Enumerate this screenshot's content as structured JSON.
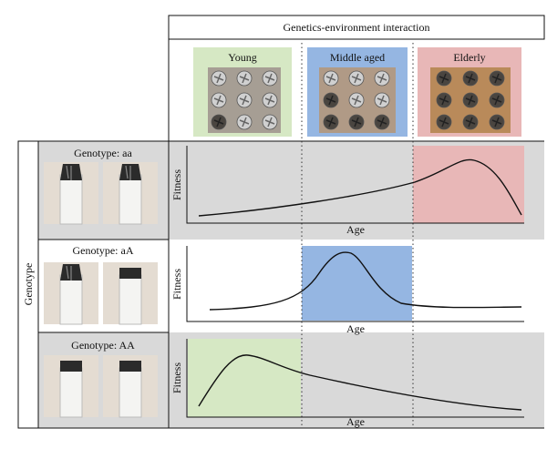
{
  "header": {
    "title": "Genetics-environment interaction"
  },
  "columns": [
    "Young",
    "Middle aged",
    "Elderly"
  ],
  "row_group_label": "Genotype",
  "rows": [
    {
      "label": "Genotype: aa",
      "y_axis": "Fitness",
      "x_axis": "Age"
    },
    {
      "label": "Genotype: aA",
      "y_axis": "Fitness",
      "x_axis": "Age"
    },
    {
      "label": "Genotype: AA",
      "y_axis": "Fitness",
      "x_axis": "Age"
    }
  ]
}
